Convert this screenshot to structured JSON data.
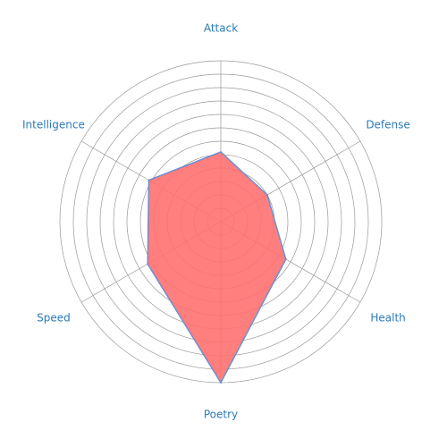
{
  "chart_data": {
    "type": "radar",
    "categories": [
      "Attack",
      "Defense",
      "Health",
      "Poetry",
      "Speed",
      "Intelligence"
    ],
    "values": [
      5.2,
      4,
      5.6,
      12,
      6.3,
      6.2
    ],
    "color": "#ff7070",
    "line_color": "#6f8fcf",
    "ylim": [
      0,
      12
    ],
    "yticks": [
      1,
      2,
      3,
      4,
      5,
      6,
      7,
      8,
      9,
      10,
      11,
      12
    ],
    "grid": true
  }
}
